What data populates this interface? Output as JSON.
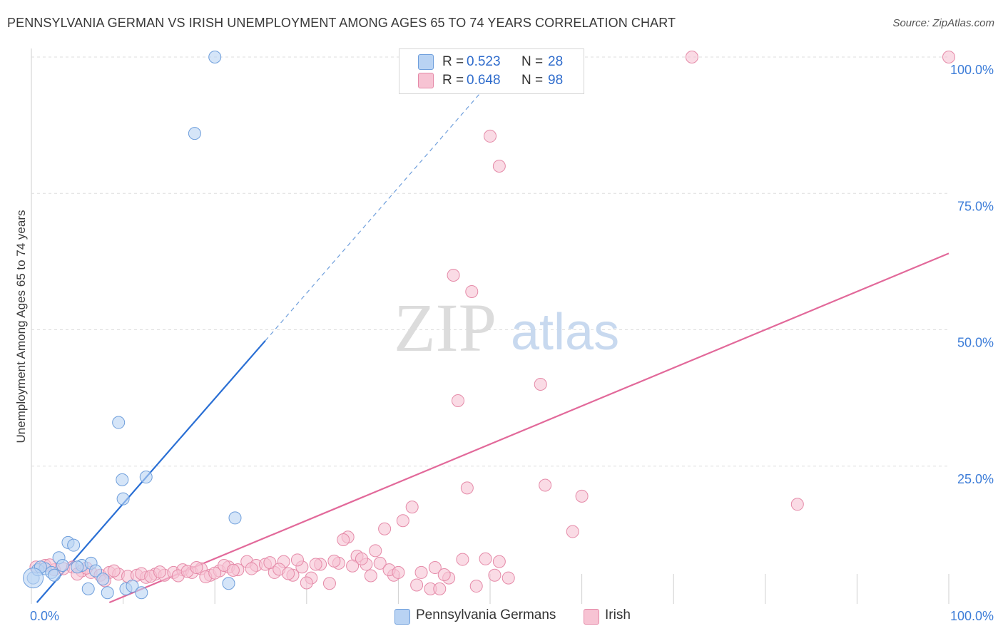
{
  "title": "PENNSYLVANIA GERMAN VS IRISH UNEMPLOYMENT AMONG AGES 65 TO 74 YEARS CORRELATION CHART",
  "source": "Source: ZipAtlas.com",
  "watermark": {
    "zip": "ZIP",
    "atlas": "atlas"
  },
  "colors": {
    "blue_fill": "#b9d3f3",
    "blue_stroke": "#6f9fdc",
    "blue_line": "#2a6fd4",
    "pink_fill": "#f7c3d3",
    "pink_stroke": "#e58aa8",
    "pink_line": "#e2699a",
    "tick_text": "#3d7dd8",
    "grid": "#dddddd"
  },
  "legend": {
    "rows": [
      {
        "r_label": "R =",
        "r_value": "0.523",
        "n_label": "N =",
        "n_value": "28"
      },
      {
        "r_label": "R =",
        "r_value": "0.648",
        "n_label": "N =",
        "n_value": "98"
      }
    ]
  },
  "bottom_legend": {
    "series1": "Pennsylvania Germans",
    "series2": "Irish"
  },
  "chart_data": {
    "type": "scatter",
    "title": "PENNSYLVANIA GERMAN VS IRISH UNEMPLOYMENT AMONG AGES 65 TO 74 YEARS CORRELATION CHART",
    "xlabel": "",
    "ylabel": "Unemployment Among Ages 65 to 74 years",
    "xlim": [
      0,
      100
    ],
    "ylim": [
      0,
      100
    ],
    "x_tick_labels": [
      "0.0%",
      "100.0%"
    ],
    "y_ticks": [
      25,
      50,
      75,
      100
    ],
    "y_tick_labels": [
      "25.0%",
      "50.0%",
      "75.0%",
      "100.0%"
    ],
    "series": [
      {
        "name": "Pennsylvania Germans",
        "r": 0.523,
        "n": 28,
        "points": [
          [
            0.2,
            4.5
          ],
          [
            0.7,
            6.0
          ],
          [
            1.5,
            6.2
          ],
          [
            2.2,
            5.5
          ],
          [
            3.0,
            8.2
          ],
          [
            3.4,
            6.8
          ],
          [
            4.0,
            11.0
          ],
          [
            4.6,
            10.5
          ],
          [
            5.5,
            6.8
          ],
          [
            6.2,
            2.5
          ],
          [
            6.5,
            7.2
          ],
          [
            7.0,
            5.8
          ],
          [
            7.8,
            4.3
          ],
          [
            8.3,
            1.8
          ],
          [
            9.5,
            33.0
          ],
          [
            9.9,
            22.5
          ],
          [
            10.0,
            19.0
          ],
          [
            10.3,
            2.5
          ],
          [
            11.0,
            3.0
          ],
          [
            12.0,
            1.8
          ],
          [
            12.5,
            23.0
          ],
          [
            17.8,
            86.0
          ],
          [
            20.0,
            100.0
          ],
          [
            22.2,
            15.5
          ],
          [
            21.5,
            3.5
          ],
          [
            1.0,
            6.5
          ],
          [
            2.5,
            5.0
          ],
          [
            5.0,
            6.5
          ]
        ],
        "trend": {
          "x": [
            0.6,
            25.5
          ],
          "y": [
            0.0,
            48.0
          ],
          "dashed_to": [
            49.5,
            94.5
          ]
        }
      },
      {
        "name": "Irish",
        "r": 0.648,
        "n": 98,
        "points": [
          [
            0.5,
            6.5
          ],
          [
            1.5,
            6.8
          ],
          [
            2.5,
            6.0
          ],
          [
            3.5,
            6.2
          ],
          [
            4.5,
            6.5
          ],
          [
            5.5,
            5.8
          ],
          [
            6.5,
            5.5
          ],
          [
            7.5,
            5.0
          ],
          [
            8.5,
            5.5
          ],
          [
            9.5,
            5.2
          ],
          [
            10.5,
            4.8
          ],
          [
            11.5,
            5.0
          ],
          [
            12.5,
            4.6
          ],
          [
            13.5,
            5.2
          ],
          [
            14.5,
            5.0
          ],
          [
            15.5,
            5.5
          ],
          [
            16.5,
            6.0
          ],
          [
            17.5,
            5.5
          ],
          [
            18.5,
            6.2
          ],
          [
            19.5,
            5.0
          ],
          [
            20.5,
            5.8
          ],
          [
            21.5,
            6.5
          ],
          [
            22.5,
            6.0
          ],
          [
            23.5,
            7.5
          ],
          [
            24.5,
            6.8
          ],
          [
            25.5,
            7.0
          ],
          [
            26.5,
            5.5
          ],
          [
            27.5,
            7.5
          ],
          [
            28.5,
            5.0
          ],
          [
            29.5,
            6.5
          ],
          [
            30.5,
            4.5
          ],
          [
            31.5,
            7.0
          ],
          [
            32.5,
            3.5
          ],
          [
            33.5,
            7.2
          ],
          [
            34.5,
            12.0
          ],
          [
            35.5,
            8.5
          ],
          [
            36.5,
            7.0
          ],
          [
            37.5,
            9.5
          ],
          [
            38.5,
            13.5
          ],
          [
            39.5,
            5.0
          ],
          [
            40.5,
            15.0
          ],
          [
            41.5,
            17.5
          ],
          [
            42.5,
            5.5
          ],
          [
            43.5,
            2.5
          ],
          [
            44.5,
            2.5
          ],
          [
            45.5,
            4.5
          ],
          [
            46.5,
            37.0
          ],
          [
            47.5,
            21.0
          ],
          [
            48.5,
            3.0
          ],
          [
            49.5,
            8.0
          ],
          [
            50.5,
            5.0
          ],
          [
            51.0,
            7.5
          ],
          [
            52.0,
            4.5
          ],
          [
            46.0,
            60.0
          ],
          [
            48.0,
            57.0
          ],
          [
            50.0,
            85.5
          ],
          [
            51.0,
            80.0
          ],
          [
            55.5,
            40.0
          ],
          [
            56.0,
            21.5
          ],
          [
            59.0,
            13.0
          ],
          [
            60.0,
            19.5
          ],
          [
            72.0,
            100.0
          ],
          [
            83.5,
            18.0
          ],
          [
            100.0,
            100.0
          ],
          [
            5.0,
            5.2
          ],
          [
            6.0,
            6.3
          ],
          [
            8.0,
            4.0
          ],
          [
            9.0,
            5.8
          ],
          [
            12.0,
            5.3
          ],
          [
            13.0,
            4.8
          ],
          [
            14.0,
            5.6
          ],
          [
            16.0,
            4.9
          ],
          [
            17.0,
            5.7
          ],
          [
            18.0,
            6.4
          ],
          [
            19.0,
            4.7
          ],
          [
            20.0,
            5.4
          ],
          [
            21.0,
            6.8
          ],
          [
            22.0,
            5.9
          ],
          [
            24.0,
            6.2
          ],
          [
            26.0,
            7.3
          ],
          [
            27.0,
            6.1
          ],
          [
            28.0,
            5.3
          ],
          [
            29.0,
            7.8
          ],
          [
            30.0,
            3.6
          ],
          [
            31.0,
            7.0
          ],
          [
            33.0,
            7.6
          ],
          [
            34.0,
            11.5
          ],
          [
            35.0,
            6.7
          ],
          [
            36.0,
            8.0
          ],
          [
            37.0,
            4.9
          ],
          [
            38.0,
            7.2
          ],
          [
            39.0,
            6.0
          ],
          [
            40.0,
            5.5
          ],
          [
            42.0,
            3.2
          ],
          [
            44.0,
            6.4
          ],
          [
            45.0,
            5.1
          ],
          [
            47.0,
            7.9
          ],
          [
            2.0,
            6.9
          ]
        ],
        "trend": {
          "x": [
            8.5,
            100.0
          ],
          "y": [
            0.0,
            64.0
          ]
        }
      }
    ]
  }
}
